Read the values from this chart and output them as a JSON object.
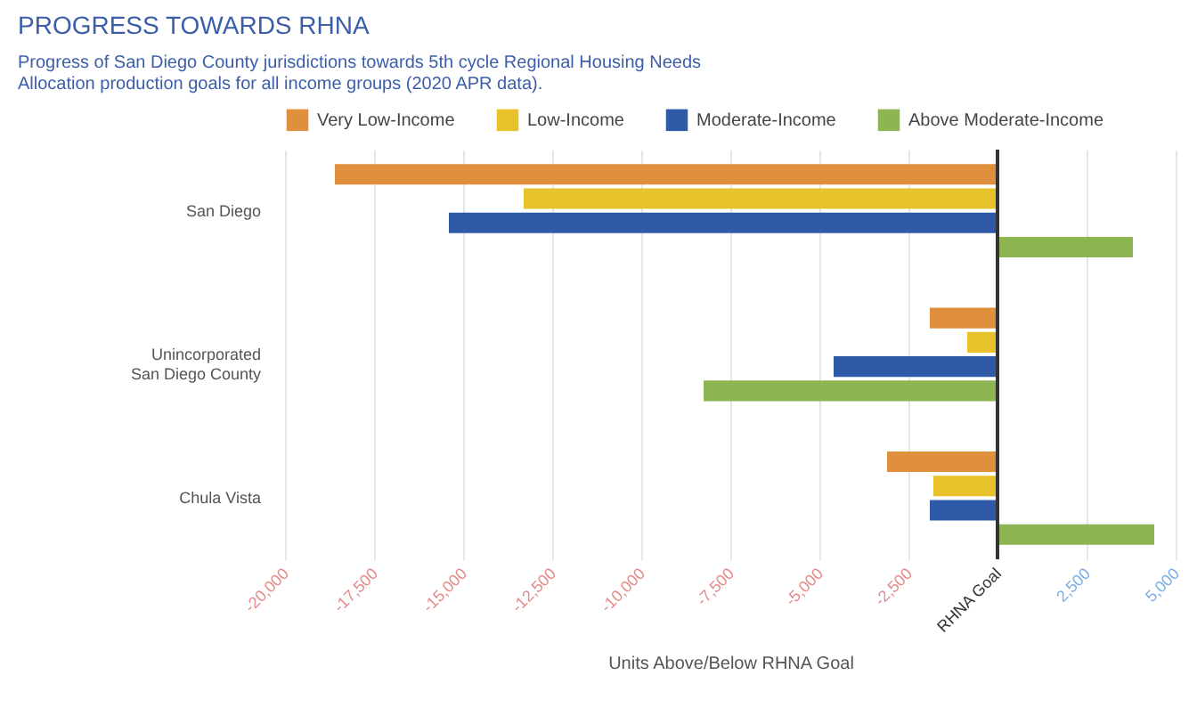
{
  "chart_data": {
    "type": "bar",
    "orientation": "horizontal",
    "title": "PROGRESS TOWARDS RHNA",
    "subtitle": "Progress of San Diego County jurisdictions towards 5th cycle Regional Housing Needs Allocation production goals for all income groups (2020 APR data).",
    "xlabel": "Units Above/Below RHNA Goal",
    "categories": [
      "San Diego",
      "Unincorporated San Diego County",
      "Chula Vista"
    ],
    "series": [
      {
        "name": "Very Low-Income",
        "color": "#e08f3c",
        "values": [
          -18600,
          -1900,
          -3100
        ]
      },
      {
        "name": "Low-Income",
        "color": "#e8c22a",
        "values": [
          -13300,
          -850,
          -1800
        ]
      },
      {
        "name": "Moderate-Income",
        "color": "#2f5aa8",
        "values": [
          -15400,
          -4600,
          -1900
        ]
      },
      {
        "name": "Above Moderate-Income",
        "color": "#8db552",
        "values": [
          3800,
          -8250,
          4400
        ]
      }
    ],
    "xlim": [
      -20000,
      5000
    ],
    "xticks": [
      {
        "value": -20000,
        "label": "-20,000"
      },
      {
        "value": -17500,
        "label": "-17,500"
      },
      {
        "value": -15000,
        "label": "-15,000"
      },
      {
        "value": -12500,
        "label": "-12,500"
      },
      {
        "value": -10000,
        "label": "-10,000"
      },
      {
        "value": -7500,
        "label": "-7,500"
      },
      {
        "value": -5000,
        "label": "-5,000"
      },
      {
        "value": -2500,
        "label": "-2,500"
      },
      {
        "value": 0,
        "label": "RHNA Goal"
      },
      {
        "value": 2500,
        "label": "2,500"
      },
      {
        "value": 5000,
        "label": "5,000"
      }
    ],
    "ref_lines": [
      {
        "axis": "x",
        "value": 0,
        "color": "#333333"
      }
    ],
    "grid": "x",
    "legend": "top"
  }
}
